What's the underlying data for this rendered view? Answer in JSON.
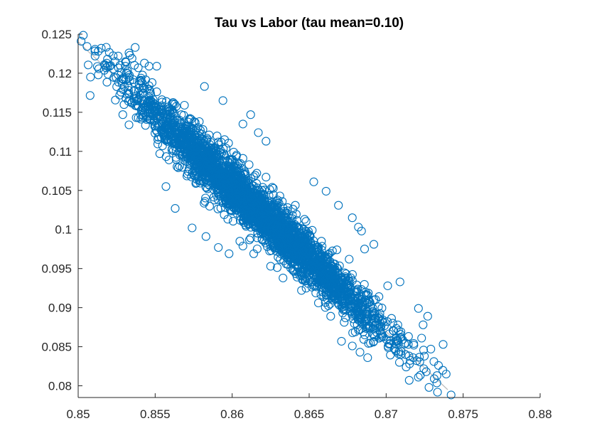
{
  "chart_data": {
    "type": "scatter",
    "title": "Tau vs Labor (tau mean=0.10)",
    "xlabel": "",
    "ylabel": "",
    "xlim": [
      0.85,
      0.88
    ],
    "ylim": [
      0.0785,
      0.125
    ],
    "x_ticks": [
      0.85,
      0.855,
      0.86,
      0.865,
      0.87,
      0.875,
      0.88
    ],
    "x_tick_labels": [
      "0.85",
      "0.855",
      "0.86",
      "0.865",
      "0.87",
      "0.875",
      "0.88"
    ],
    "y_ticks": [
      0.08,
      0.085,
      0.09,
      0.095,
      0.1,
      0.105,
      0.11,
      0.115,
      0.12,
      0.125
    ],
    "y_tick_labels": [
      "0.08",
      "0.085",
      "0.09",
      "0.095",
      "0.1",
      "0.105",
      "0.11",
      "0.115",
      "0.12",
      "0.125"
    ],
    "grid": false,
    "marker": "circle-open",
    "colors": {
      "points": "#0072BD",
      "fit_line": "#B8B8B8",
      "axes": "#262626"
    },
    "fit_line": {
      "x": [
        0.85,
        0.874
      ],
      "y": [
        0.124,
        0.0795
      ]
    },
    "series": [
      {
        "points": [
          [
            0.8508,
            0.1195
          ],
          [
            0.8511,
            0.1222
          ],
          [
            0.8513,
            0.1228
          ],
          [
            0.8515,
            0.1232
          ],
          [
            0.8519,
            0.1218
          ],
          [
            0.8521,
            0.121
          ],
          [
            0.8524,
            0.1215
          ],
          [
            0.8526,
            0.1222
          ],
          [
            0.8528,
            0.1201
          ],
          [
            0.8531,
            0.1214
          ],
          [
            0.8533,
            0.1226
          ],
          [
            0.8535,
            0.1219
          ],
          [
            0.8537,
            0.1233
          ],
          [
            0.8539,
            0.1207
          ],
          [
            0.8541,
            0.119
          ],
          [
            0.8543,
            0.1213
          ],
          [
            0.8546,
            0.1209
          ],
          [
            0.8527,
            0.1172
          ],
          [
            0.8531,
            0.1168
          ],
          [
            0.8529,
            0.1147
          ],
          [
            0.8535,
            0.1163
          ],
          [
            0.8538,
            0.1158
          ],
          [
            0.8542,
            0.1181
          ],
          [
            0.8548,
            0.1188
          ],
          [
            0.8551,
            0.1209
          ],
          [
            0.8546,
            0.1184
          ],
          [
            0.8533,
            0.1134
          ],
          [
            0.8539,
            0.1143
          ],
          [
            0.8582,
            0.1183
          ],
          [
            0.8594,
            0.1165
          ],
          [
            0.8607,
            0.1135
          ],
          [
            0.8612,
            0.1147
          ],
          [
            0.8617,
            0.1124
          ],
          [
            0.8622,
            0.1113
          ],
          [
            0.8561,
            0.1153
          ],
          [
            0.8569,
            0.1159
          ],
          [
            0.8558,
            0.1134
          ],
          [
            0.8554,
            0.1118
          ],
          [
            0.8553,
            0.1097
          ],
          [
            0.8559,
            0.1089
          ],
          [
            0.8565,
            0.1079
          ],
          [
            0.8571,
            0.1071
          ],
          [
            0.8576,
            0.1085
          ],
          [
            0.8579,
            0.1062
          ],
          [
            0.8584,
            0.1052
          ],
          [
            0.8587,
            0.1069
          ],
          [
            0.8592,
            0.1043
          ],
          [
            0.8599,
            0.1035
          ],
          [
            0.8603,
            0.1021
          ],
          [
            0.8609,
            0.1014
          ],
          [
            0.8612,
            0.0989
          ],
          [
            0.8618,
            0.0998
          ],
          [
            0.8624,
            0.1011
          ],
          [
            0.8628,
            0.0981
          ],
          [
            0.8633,
            0.0975
          ],
          [
            0.8639,
            0.0957
          ],
          [
            0.8644,
            0.0941
          ],
          [
            0.8648,
            0.0925
          ],
          [
            0.8655,
            0.0948
          ],
          [
            0.8662,
            0.0929
          ],
          [
            0.8665,
            0.0912
          ],
          [
            0.8671,
            0.0903
          ],
          [
            0.8677,
            0.0896
          ],
          [
            0.8683,
            0.0887
          ],
          [
            0.8688,
            0.0879
          ],
          [
            0.8694,
            0.0868
          ],
          [
            0.8671,
            0.0857
          ],
          [
            0.8678,
            0.0851
          ],
          [
            0.8683,
            0.0843
          ],
          [
            0.8688,
            0.0836
          ],
          [
            0.8692,
            0.0857
          ],
          [
            0.8697,
            0.0862
          ],
          [
            0.8703,
            0.0858
          ],
          [
            0.8708,
            0.0841
          ],
          [
            0.8713,
            0.0824
          ],
          [
            0.8715,
            0.0807
          ],
          [
            0.8718,
            0.0852
          ],
          [
            0.8723,
            0.0861
          ],
          [
            0.8724,
            0.0878
          ],
          [
            0.8727,
            0.0889
          ],
          [
            0.8721,
            0.0899
          ],
          [
            0.8729,
            0.0847
          ],
          [
            0.8731,
            0.0831
          ],
          [
            0.8734,
            0.0826
          ],
          [
            0.8737,
            0.0853
          ],
          [
            0.8739,
            0.0815
          ],
          [
            0.8733,
            0.0813
          ],
          [
            0.8726,
            0.0818
          ],
          [
            0.8709,
            0.0933
          ],
          [
            0.8701,
            0.0928
          ],
          [
            0.8682,
            0.1003
          ],
          [
            0.8686,
            0.0975
          ],
          [
            0.8676,
            0.0962
          ],
          [
            0.8668,
            0.0974
          ],
          [
            0.8658,
            0.0985
          ],
          [
            0.8652,
            0.0999
          ],
          [
            0.8647,
            0.1013
          ],
          [
            0.8641,
            0.1031
          ],
          [
            0.8636,
            0.1024
          ],
          [
            0.8631,
            0.1043
          ],
          [
            0.8626,
            0.1054
          ],
          [
            0.8622,
            0.1067
          ],
          [
            0.8616,
            0.1072
          ],
          [
            0.8611,
            0.1083
          ],
          [
            0.8607,
            0.1091
          ],
          [
            0.8601,
            0.1099
          ],
          [
            0.8596,
            0.1104
          ],
          [
            0.8591,
            0.1112
          ],
          [
            0.8585,
            0.1121
          ],
          [
            0.8581,
            0.1128
          ],
          [
            0.8576,
            0.1137
          ],
          [
            0.8572,
            0.1141
          ],
          [
            0.8567,
            0.1147
          ],
          [
            0.8563,
            0.1124
          ],
          [
            0.8575,
            0.1115
          ],
          [
            0.8586,
            0.1096
          ],
          [
            0.8598,
            0.1078
          ],
          [
            0.8609,
            0.1059
          ],
          [
            0.8617,
            0.1043
          ],
          [
            0.8629,
            0.1024
          ],
          [
            0.8638,
            0.1006
          ],
          [
            0.8649,
            0.0986
          ],
          [
            0.8657,
            0.0969
          ],
          [
            0.8668,
            0.0951
          ],
          [
            0.8676,
            0.0934
          ],
          [
            0.8687,
            0.0917
          ],
          [
            0.8695,
            0.0901
          ],
          [
            0.8605,
            0.0985
          ],
          [
            0.8614,
            0.0969
          ],
          [
            0.8625,
            0.0953
          ],
          [
            0.8633,
            0.0938
          ],
          [
            0.8645,
            0.0922
          ],
          [
            0.8656,
            0.0906
          ],
          [
            0.8664,
            0.0889
          ],
          [
            0.8574,
            0.1002
          ],
          [
            0.8583,
            0.0991
          ],
          [
            0.8591,
            0.0977
          ],
          [
            0.8598,
            0.0969
          ],
          [
            0.8653,
            0.1061
          ],
          [
            0.8661,
            0.1049
          ],
          [
            0.8669,
            0.1031
          ],
          [
            0.8678,
            0.1015
          ],
          [
            0.8684,
            0.0998
          ],
          [
            0.8692,
            0.0981
          ],
          [
            0.8563,
            0.1027
          ],
          [
            0.8557,
            0.1055
          ]
        ]
      }
    ]
  }
}
